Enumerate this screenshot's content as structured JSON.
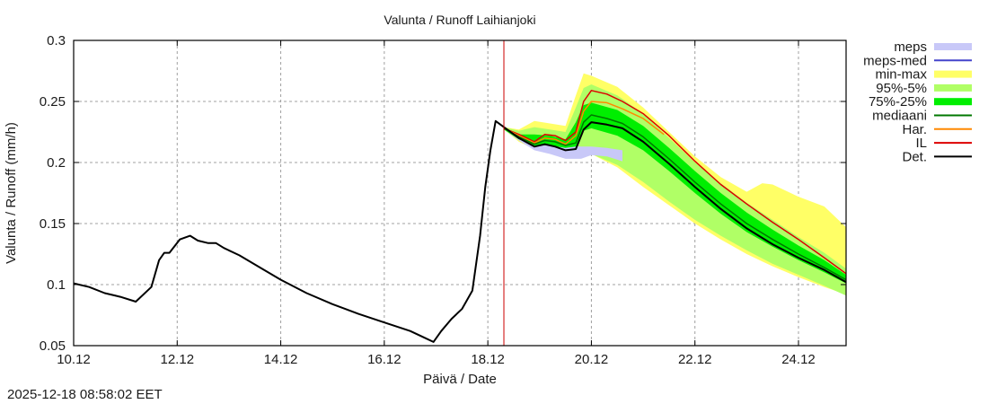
{
  "chart_data": {
    "type": "line",
    "title": "Valunta / Runoff  Laihianjoki",
    "xlabel": "Päivä / Date",
    "ylabel": "Valunta / Runoff (mm/h)",
    "x_unit": "days since 10.12 00:00",
    "xlim": [
      0,
      14.92
    ],
    "ylim": [
      0.05,
      0.3
    ],
    "grid": true,
    "legend_position": "outside-right",
    "x_ticks": [
      {
        "value": 0,
        "label": "10.12"
      },
      {
        "value": 2,
        "label": "12.12"
      },
      {
        "value": 4,
        "label": "14.12"
      },
      {
        "value": 6,
        "label": "16.12"
      },
      {
        "value": 8,
        "label": "18.12"
      },
      {
        "value": 10,
        "label": "20.12"
      },
      {
        "value": 12,
        "label": "22.12"
      },
      {
        "value": 14,
        "label": "24.12"
      }
    ],
    "y_ticks": [
      {
        "value": 0.05,
        "label": "0.05"
      },
      {
        "value": 0.1,
        "label": "0.1"
      },
      {
        "value": 0.15,
        "label": "0.15"
      },
      {
        "value": 0.2,
        "label": "0.2"
      },
      {
        "value": 0.25,
        "label": "0.25"
      },
      {
        "value": 0.3,
        "label": "0.3"
      }
    ],
    "forecast_start": 8.31,
    "forecast_start_color": "#cc0000",
    "bands": [
      {
        "name": "meps",
        "color": "#c8c8f8",
        "x": [
          8.31,
          8.6,
          8.9,
          9.2,
          9.5,
          9.8,
          10.0,
          10.3,
          10.6
        ],
        "low": [
          0.227,
          0.218,
          0.21,
          0.207,
          0.203,
          0.203,
          0.206,
          0.205,
          0.201
        ],
        "high": [
          0.228,
          0.222,
          0.218,
          0.216,
          0.214,
          0.213,
          0.213,
          0.212,
          0.21
        ]
      },
      {
        "name": "min-max",
        "color": "#ffff66",
        "x": [
          8.31,
          8.6,
          8.9,
          9.2,
          9.5,
          9.7,
          9.85,
          10.0,
          10.5,
          11.0,
          11.5,
          12.0,
          12.5,
          13.0,
          13.3,
          13.5,
          14.0,
          14.5,
          14.92
        ],
        "low": [
          0.227,
          0.217,
          0.211,
          0.21,
          0.209,
          0.208,
          0.209,
          0.207,
          0.196,
          0.18,
          0.165,
          0.15,
          0.137,
          0.125,
          0.119,
          0.115,
          0.106,
          0.098,
          0.092
        ],
        "high": [
          0.229,
          0.227,
          0.234,
          0.232,
          0.23,
          0.255,
          0.273,
          0.271,
          0.262,
          0.245,
          0.225,
          0.205,
          0.188,
          0.176,
          0.183,
          0.182,
          0.172,
          0.164,
          0.147
        ]
      },
      {
        "name": "95%-5%",
        "color": "#b0ff66",
        "x": [
          8.31,
          8.6,
          8.9,
          9.2,
          9.5,
          9.7,
          9.85,
          10.0,
          10.5,
          11.0,
          11.5,
          12.0,
          12.5,
          13.0,
          13.5,
          14.0,
          14.5,
          14.92
        ],
        "low": [
          0.227,
          0.218,
          0.212,
          0.211,
          0.21,
          0.209,
          0.208,
          0.207,
          0.198,
          0.184,
          0.168,
          0.153,
          0.14,
          0.128,
          0.117,
          0.108,
          0.099,
          0.091
        ],
        "high": [
          0.229,
          0.226,
          0.229,
          0.227,
          0.225,
          0.245,
          0.261,
          0.264,
          0.255,
          0.24,
          0.22,
          0.2,
          0.183,
          0.167,
          0.153,
          0.139,
          0.126,
          0.113
        ]
      },
      {
        "name": "75%-25%",
        "color": "#00ee00",
        "x": [
          8.31,
          8.6,
          8.9,
          9.2,
          9.5,
          9.7,
          9.85,
          10.0,
          10.5,
          11.0,
          11.5,
          12.0,
          12.5,
          13.0,
          13.5,
          14.0,
          14.5,
          14.92
        ],
        "low": [
          0.227,
          0.219,
          0.214,
          0.214,
          0.212,
          0.213,
          0.226,
          0.228,
          0.222,
          0.21,
          0.193,
          0.175,
          0.158,
          0.143,
          0.131,
          0.12,
          0.11,
          0.101
        ],
        "high": [
          0.228,
          0.223,
          0.223,
          0.222,
          0.219,
          0.233,
          0.247,
          0.249,
          0.243,
          0.23,
          0.212,
          0.193,
          0.175,
          0.159,
          0.145,
          0.132,
          0.12,
          0.108
        ]
      }
    ],
    "series": [
      {
        "name": "Det.",
        "color": "#000000",
        "x": [
          0,
          0.3,
          0.6,
          0.9,
          1.2,
          1.5,
          1.65,
          1.75,
          1.85,
          2.05,
          2.25,
          2.4,
          2.6,
          2.75,
          2.9,
          3.2,
          3.6,
          4.0,
          4.5,
          5.0,
          5.5,
          6.0,
          6.5,
          6.8,
          6.95,
          7.1,
          7.3,
          7.5,
          7.7,
          7.85,
          7.95,
          8.05,
          8.15,
          8.31,
          8.6,
          8.9,
          9.1,
          9.3,
          9.5,
          9.7,
          9.85,
          10.0,
          10.3,
          10.6,
          11.0,
          11.5,
          12.0,
          12.5,
          13.0,
          13.5,
          14.0,
          14.5,
          14.92
        ],
        "y": [
          0.101,
          0.098,
          0.093,
          0.09,
          0.086,
          0.098,
          0.12,
          0.126,
          0.126,
          0.137,
          0.14,
          0.136,
          0.134,
          0.134,
          0.13,
          0.124,
          0.114,
          0.104,
          0.093,
          0.084,
          0.076,
          0.069,
          0.062,
          0.056,
          0.053,
          0.062,
          0.072,
          0.08,
          0.095,
          0.14,
          0.18,
          0.21,
          0.234,
          0.229,
          0.22,
          0.213,
          0.215,
          0.213,
          0.21,
          0.211,
          0.227,
          0.233,
          0.231,
          0.228,
          0.217,
          0.199,
          0.18,
          0.162,
          0.146,
          0.133,
          0.122,
          0.112,
          0.102
        ]
      },
      {
        "name": "mediaani",
        "color": "#007700",
        "x": [
          8.31,
          8.6,
          8.9,
          9.1,
          9.3,
          9.5,
          9.7,
          9.85,
          10.0,
          10.3,
          10.6,
          11.0,
          11.5,
          12.0,
          12.5,
          13.0,
          13.5,
          14.0,
          14.5,
          14.92
        ],
        "y": [
          0.228,
          0.221,
          0.215,
          0.218,
          0.217,
          0.214,
          0.216,
          0.233,
          0.239,
          0.236,
          0.232,
          0.221,
          0.203,
          0.184,
          0.166,
          0.15,
          0.137,
          0.125,
          0.114,
          0.104
        ]
      },
      {
        "name": "Har.",
        "color": "#ff8800",
        "x": [
          8.31,
          8.6,
          8.9,
          9.1,
          9.3,
          9.5,
          9.7,
          9.85,
          10.0,
          10.3,
          10.6,
          11.0,
          11.4
        ],
        "y": [
          0.228,
          0.222,
          0.216,
          0.22,
          0.219,
          0.215,
          0.222,
          0.242,
          0.25,
          0.249,
          0.244,
          0.236,
          0.223
        ]
      },
      {
        "name": "IL",
        "color": "#dd0000",
        "x": [
          8.31,
          8.6,
          8.9,
          9.1,
          9.3,
          9.5,
          9.7,
          9.85,
          10.0,
          10.3,
          10.6,
          11.0,
          11.5,
          12.0,
          12.5,
          13.0,
          13.5,
          14.0,
          14.5,
          14.92
        ],
        "y": [
          0.228,
          0.223,
          0.217,
          0.223,
          0.222,
          0.218,
          0.225,
          0.25,
          0.259,
          0.256,
          0.25,
          0.24,
          0.222,
          0.201,
          0.182,
          0.166,
          0.151,
          0.137,
          0.122,
          0.109
        ]
      }
    ],
    "legend": [
      {
        "label": "meps",
        "color": "#c8c8f8",
        "kind": "band"
      },
      {
        "label": "meps-med",
        "color": "#4444cc",
        "kind": "line"
      },
      {
        "label": "min-max",
        "color": "#ffff66",
        "kind": "band"
      },
      {
        "label": "95%-5%",
        "color": "#b0ff66",
        "kind": "band"
      },
      {
        "label": "75%-25%",
        "color": "#00ee00",
        "kind": "band"
      },
      {
        "label": "mediaani",
        "color": "#007700",
        "kind": "line"
      },
      {
        "label": "Har.",
        "color": "#ff8800",
        "kind": "line"
      },
      {
        "label": "IL",
        "color": "#dd0000",
        "kind": "line"
      },
      {
        "label": "Det.",
        "color": "#000000",
        "kind": "line"
      }
    ]
  },
  "footer": {
    "timestamp": "2025-12-18 08:58:02 EET"
  }
}
